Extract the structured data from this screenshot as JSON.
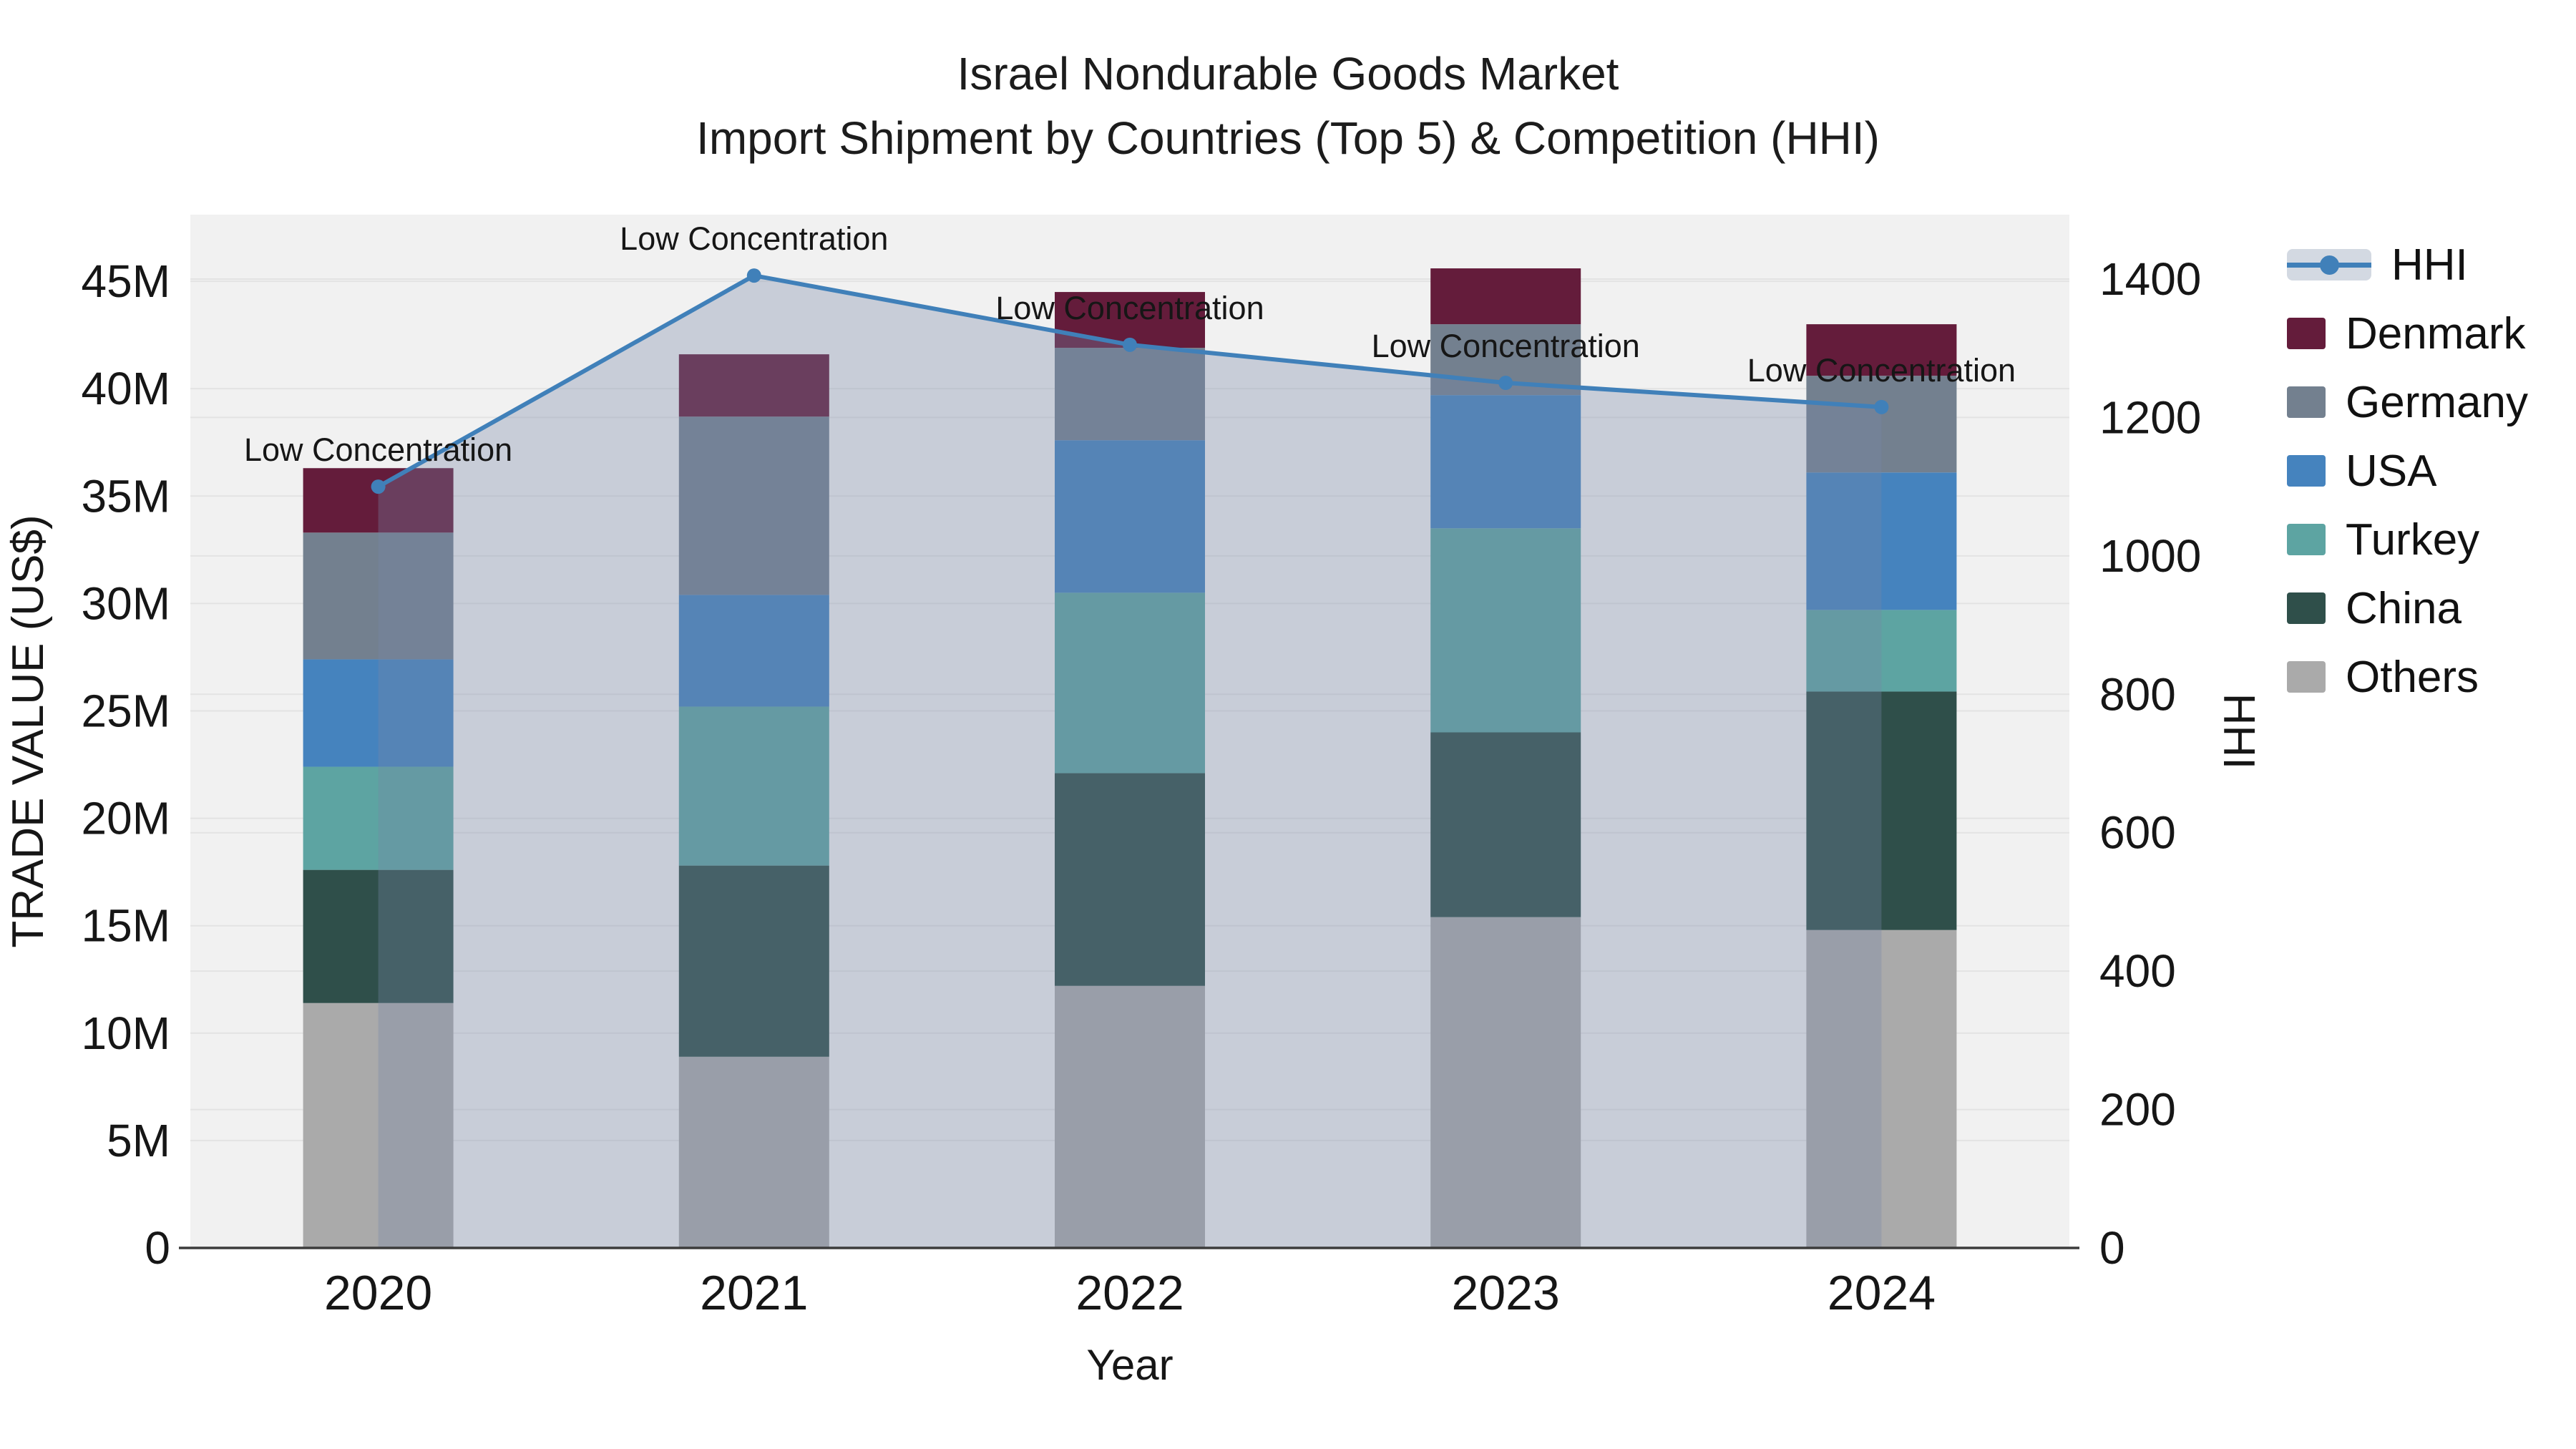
{
  "title": {
    "line1": "Israel Nondurable Goods Market",
    "line2": "Import Shipment by Countries (Top 5) & Competition (HHI)"
  },
  "chart_data": {
    "type": "bar+line",
    "categories": [
      "2020",
      "2021",
      "2022",
      "2023",
      "2024"
    ],
    "bar_unit": "M US$",
    "stack_note": "stacked bottom-to-top: Others, China, Turkey, USA, Germany, Denmark",
    "series": [
      {
        "name": "Denmark",
        "color": "#641C3B",
        "values": [
          3.0,
          2.9,
          2.6,
          2.6,
          2.4
        ]
      },
      {
        "name": "Germany",
        "color": "#73808F",
        "values": [
          5.9,
          8.3,
          4.3,
          3.3,
          4.5
        ]
      },
      {
        "name": "USA",
        "color": "#4583BE",
        "values": [
          5.0,
          5.2,
          7.1,
          6.2,
          6.4
        ]
      },
      {
        "name": "Turkey",
        "color": "#5DA4A2",
        "values": [
          4.8,
          7.4,
          8.4,
          9.5,
          3.8
        ]
      },
      {
        "name": "China",
        "color": "#2F4F4A",
        "values": [
          6.2,
          8.9,
          9.9,
          8.6,
          11.1
        ]
      },
      {
        "name": "Others",
        "color": "#AAAAAA",
        "values": [
          11.4,
          8.9,
          12.2,
          15.4,
          14.8
        ]
      }
    ],
    "totals": [
      36.3,
      41.6,
      44.5,
      45.6,
      43.0
    ],
    "line_series": {
      "name": "HHI",
      "color": "#4080B9",
      "fill_color": "#7787A6",
      "fill_opacity": 0.33,
      "values": [
        1100,
        1405,
        1305,
        1250,
        1215
      ]
    },
    "annotations": [
      {
        "category": "2020",
        "text": "Low Concentration"
      },
      {
        "category": "2021",
        "text": "Low Concentration"
      },
      {
        "category": "2022",
        "text": "Low Concentration"
      },
      {
        "category": "2023",
        "text": "Low Concentration"
      },
      {
        "category": "2024",
        "text": "Low Concentration"
      }
    ],
    "xlabel": "Year",
    "ylabel": "TRADE VALUE (US$)",
    "y2label": "HHI",
    "ytick_labels": [
      "0",
      "5M",
      "10M",
      "15M",
      "20M",
      "25M",
      "30M",
      "35M",
      "40M",
      "45M"
    ],
    "ytick_values": [
      0,
      5,
      10,
      15,
      20,
      25,
      30,
      35,
      40,
      45
    ],
    "ylim": [
      0,
      48.1
    ],
    "y2tick_labels": [
      "0",
      "200",
      "400",
      "600",
      "800",
      "1000",
      "1200",
      "1400"
    ],
    "y2tick_values": [
      0,
      200,
      400,
      600,
      800,
      1000,
      1200,
      1400
    ],
    "y2lim": [
      0,
      1493
    ],
    "grid": true,
    "legend_position": "right",
    "plot_bg": "#F1F1F1",
    "grid_color": "#E3E3E3",
    "axis_line_color": "#3C3C3C"
  },
  "legend": {
    "items": [
      {
        "label": "HHI",
        "type": "line",
        "color": "#4080B9",
        "band": "#D3D9E2"
      },
      {
        "label": "Denmark",
        "type": "box",
        "color": "#641C3B"
      },
      {
        "label": "Germany",
        "type": "box",
        "color": "#73808F"
      },
      {
        "label": "USA",
        "type": "box",
        "color": "#4583BE"
      },
      {
        "label": "Turkey",
        "type": "box",
        "color": "#5DA4A2"
      },
      {
        "label": "China",
        "type": "box",
        "color": "#2F4F4A"
      },
      {
        "label": "Others",
        "type": "box",
        "color": "#AAAAAA"
      }
    ]
  }
}
